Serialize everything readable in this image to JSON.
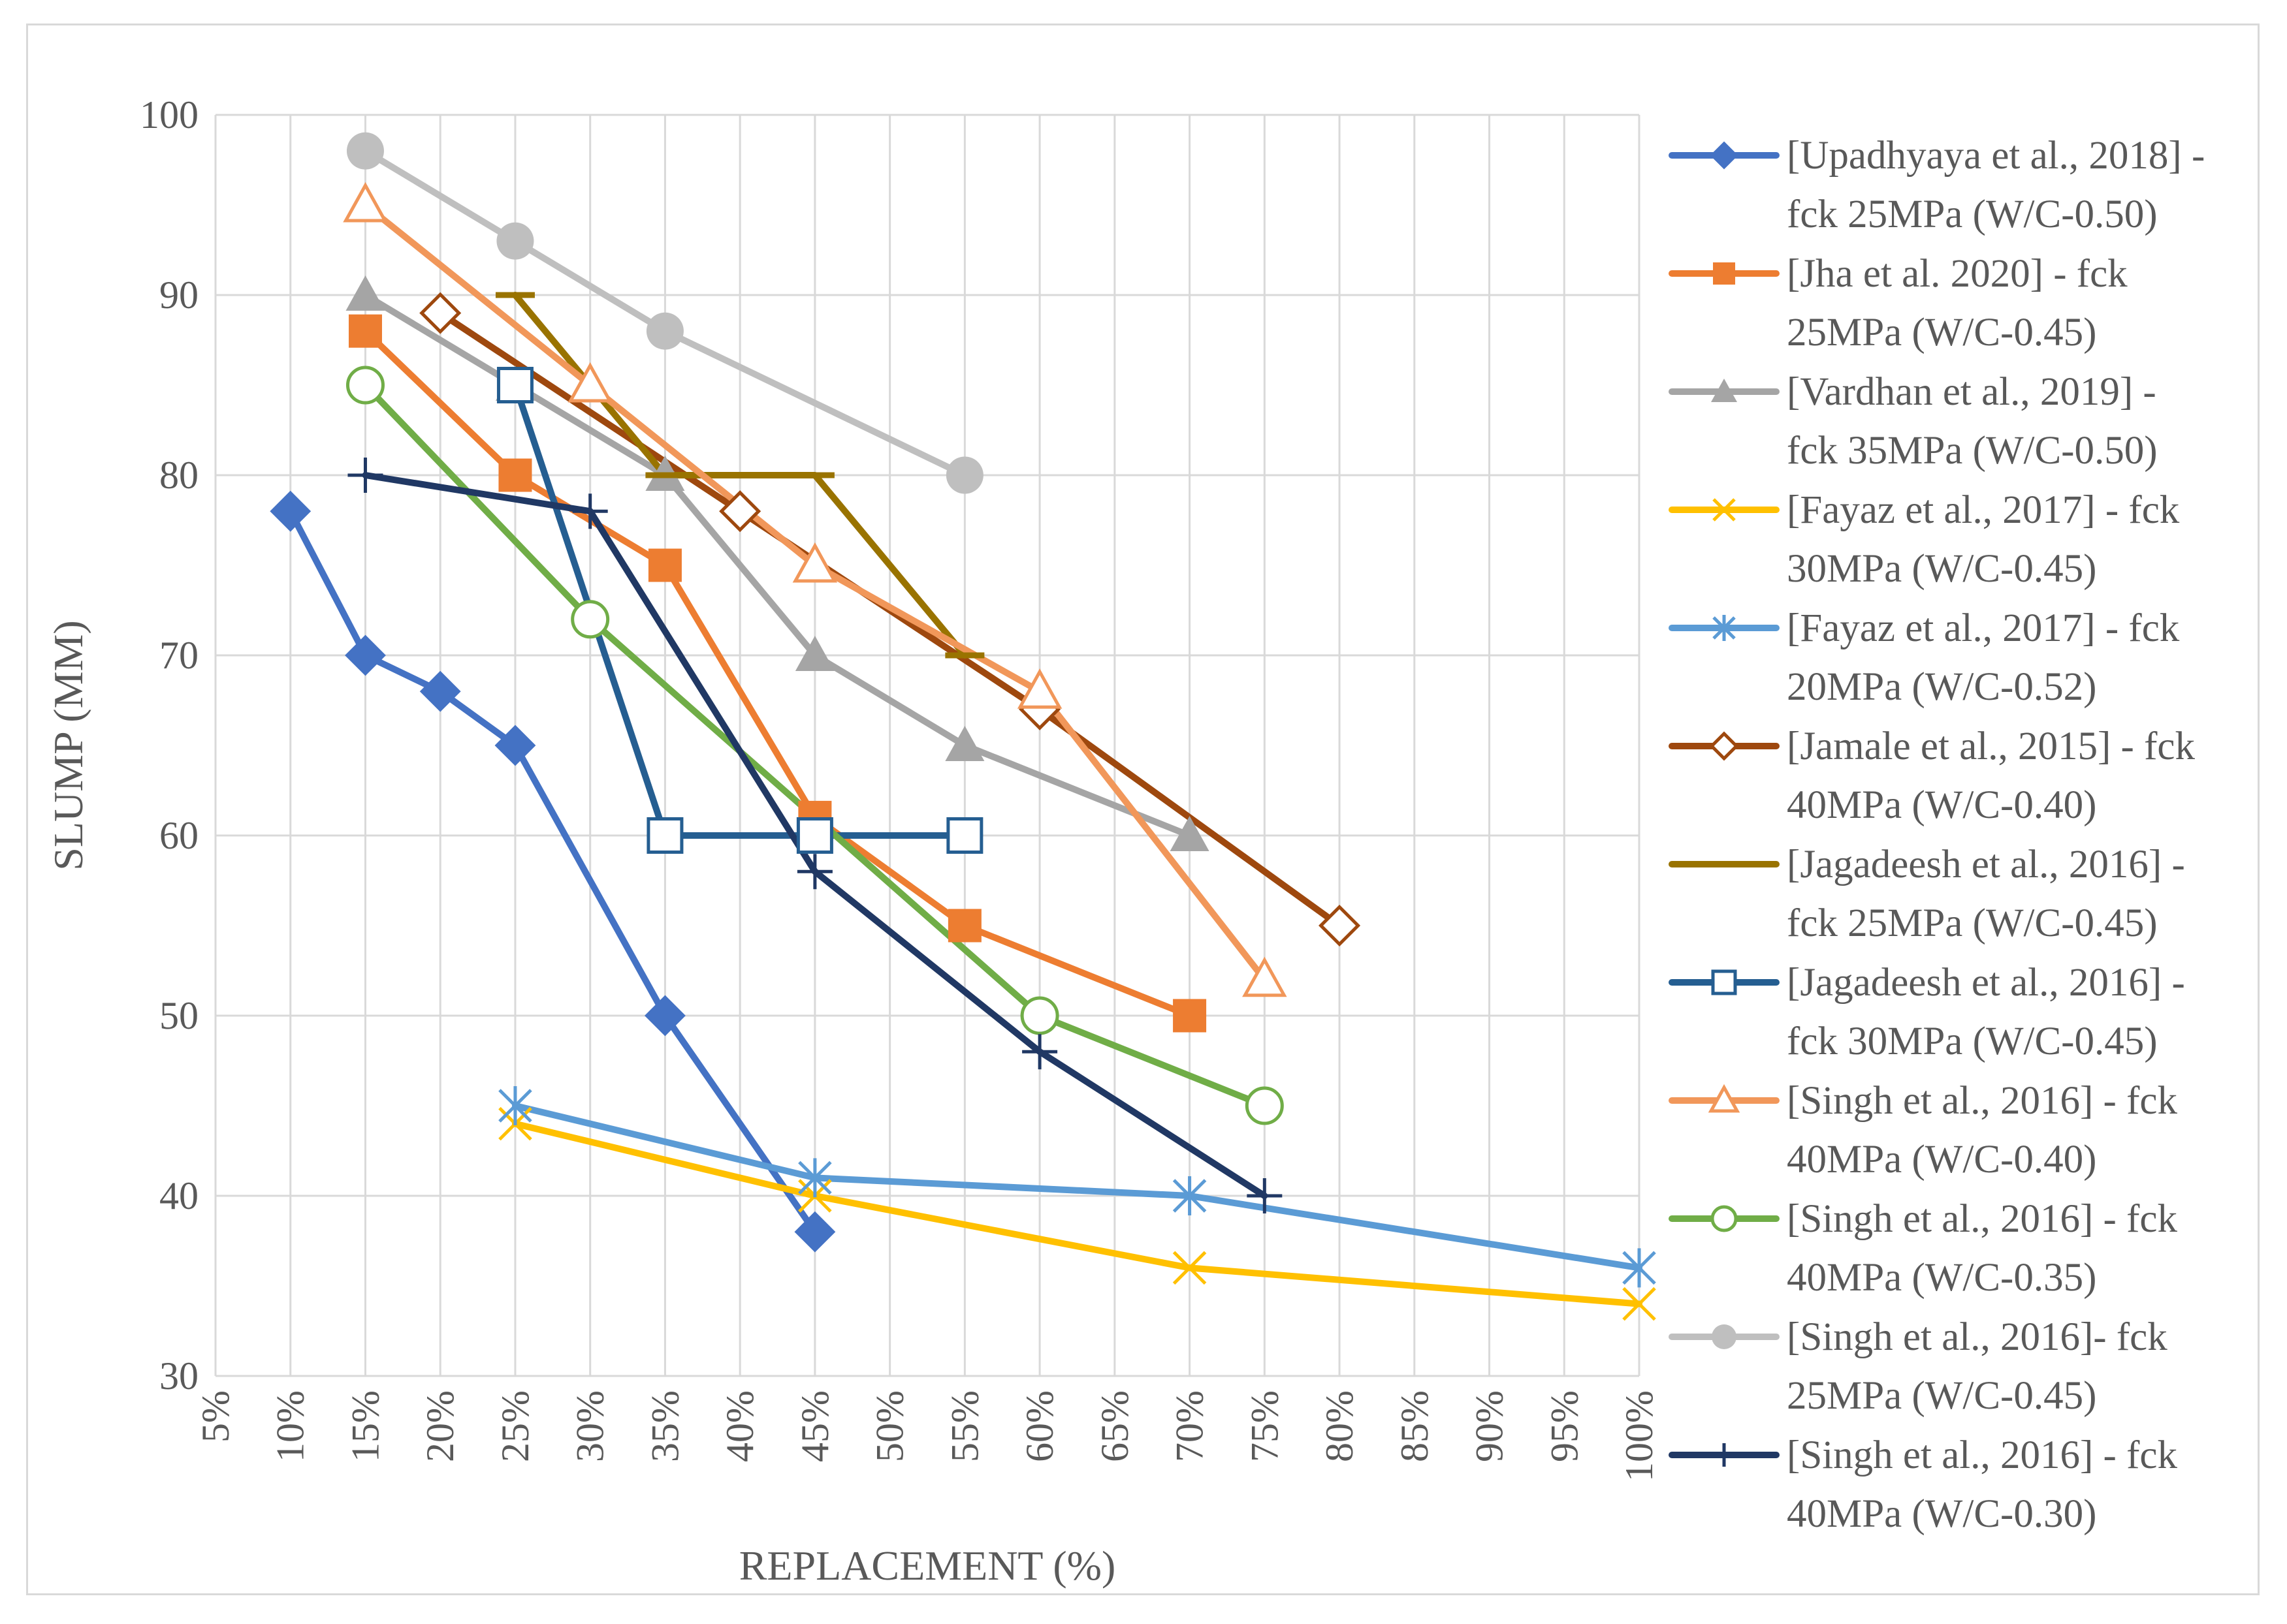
{
  "chart_data": {
    "type": "line",
    "title": "",
    "xlabel": "REPLACEMENT (%)",
    "ylabel": "SLUMP (MM)",
    "ylim": [
      30,
      100
    ],
    "yticks": [
      30,
      40,
      50,
      60,
      70,
      80,
      90,
      100
    ],
    "xlim": [
      5,
      100
    ],
    "xtick_values": [
      5,
      10,
      15,
      20,
      25,
      30,
      35,
      40,
      45,
      50,
      55,
      60,
      65,
      70,
      75,
      80,
      85,
      90,
      95,
      100
    ],
    "xtick_labels": [
      "5%",
      "10%",
      "15%",
      "20%",
      "25%",
      "30%",
      "35%",
      "40%",
      "45%",
      "50%",
      "55%",
      "60%",
      "65%",
      "70%",
      "75%",
      "80%",
      "85%",
      "90%",
      "95%",
      "100%"
    ],
    "grid": true,
    "legend_position": "right",
    "series": [
      {
        "name": "[Upadhyaya et al., 2018] - fck 25MPa (W/C-0.50)",
        "legend_lines": [
          "[Upadhyaya et al., 2018] -",
          "fck 25MPa (W/C-0.50)"
        ],
        "color": "#4472C4",
        "marker": "diamond-filled",
        "x": [
          10,
          15,
          20,
          25,
          35,
          45
        ],
        "y": [
          78,
          70,
          68,
          65,
          50,
          38
        ]
      },
      {
        "name": "[Jha et al. 2020] - fck 25MPa (W/C-0.45)",
        "legend_lines": [
          "[Jha et al. 2020] - fck",
          "25MPa (W/C-0.45)"
        ],
        "color": "#ED7D31",
        "marker": "square-filled",
        "x": [
          15,
          25,
          35,
          45,
          55,
          70
        ],
        "y": [
          88,
          80,
          75,
          61,
          55,
          50
        ]
      },
      {
        "name": "[Vardhan et al., 2019] - fck 35MPa (W/C-0.50)",
        "legend_lines": [
          "[Vardhan et al., 2019] -",
          "fck 35MPa (W/C-0.50)"
        ],
        "color": "#A5A5A5",
        "marker": "triangle-filled",
        "x": [
          15,
          25,
          35,
          45,
          55,
          70
        ],
        "y": [
          90,
          85,
          80,
          70,
          65,
          60
        ]
      },
      {
        "name": "[Fayaz et al., 2017] - fck 30MPa (W/C-0.45)",
        "legend_lines": [
          "[Fayaz et al., 2017] - fck",
          "30MPa (W/C-0.45)"
        ],
        "color": "#FFC000",
        "marker": "x",
        "x": [
          25,
          45,
          70,
          100
        ],
        "y": [
          44,
          40,
          36,
          34
        ]
      },
      {
        "name": "[Fayaz et al., 2017] - fck 20MPa (W/C-0.52)",
        "legend_lines": [
          "[Fayaz et al., 2017] - fck",
          "20MPa (W/C-0.52)"
        ],
        "color": "#5B9BD5",
        "marker": "star",
        "x": [
          25,
          45,
          70,
          100
        ],
        "y": [
          45,
          41,
          40,
          36
        ]
      },
      {
        "name": "[Jamale et al., 2015] - fck 40MPa (W/C-0.40)",
        "legend_lines": [
          "[Jamale et al., 2015] - fck",
          "40MPa (W/C-0.40)"
        ],
        "color": "#9E480E",
        "marker": "diamond-open",
        "x": [
          20,
          40,
          60,
          80
        ],
        "y": [
          89,
          78,
          67,
          55
        ]
      },
      {
        "name": "[Jagadeesh et al., 2016] - fck 25MPa (W/C-0.45)",
        "legend_lines": [
          "[Jagadeesh et al., 2016] -",
          "fck 25MPa (W/C-0.45)"
        ],
        "color": "#997300",
        "marker": "dash",
        "x": [
          25,
          35,
          45,
          55
        ],
        "y": [
          90,
          80,
          80,
          70
        ]
      },
      {
        "name": "[Jagadeesh et al., 2016] - fck 30MPa (W/C-0.45)",
        "legend_lines": [
          "[Jagadeesh et al., 2016] -",
          "fck 30MPa (W/C-0.45)"
        ],
        "color": "#255E91",
        "marker": "square-open",
        "x": [
          25,
          35,
          45,
          55
        ],
        "y": [
          85,
          60,
          60,
          60
        ]
      },
      {
        "name": "[Singh et al., 2016] - fck 40MPa (W/C-0.40)",
        "legend_lines": [
          "[Singh et al., 2016] - fck",
          "40MPa (W/C-0.40)"
        ],
        "color": "#F4B183",
        "stroke": "#F1975A",
        "marker": "triangle-open",
        "x": [
          15,
          30,
          45,
          60,
          75
        ],
        "y": [
          95,
          85,
          75,
          68,
          52
        ]
      },
      {
        "name": "[Singh et al., 2016] - fck 40MPa (W/C-0.35)",
        "legend_lines": [
          "[Singh et al., 2016] - fck",
          "40MPa (W/C-0.35)"
        ],
        "color": "#70AD47",
        "marker": "circle-open",
        "x": [
          15,
          30,
          60,
          75
        ],
        "y": [
          85,
          72,
          50,
          45
        ]
      },
      {
        "name": "[Singh et al., 2016]- fck 25MPa (W/C-0.45)",
        "legend_lines": [
          "[Singh et al., 2016]- fck",
          "25MPa (W/C-0.45)"
        ],
        "color": "#BFBFBF",
        "marker": "circle-filled",
        "x": [
          15,
          25,
          35,
          55
        ],
        "y": [
          98,
          93,
          88,
          80
        ]
      },
      {
        "name": "[Singh et al., 2016] - fck 40MPa (W/C-0.30)",
        "legend_lines": [
          "[Singh et al., 2016] - fck",
          "40MPa (W/C-0.30)"
        ],
        "color": "#203864",
        "marker": "plus",
        "x": [
          15,
          30,
          45,
          60,
          75
        ],
        "y": [
          80,
          78,
          58,
          48,
          40
        ]
      }
    ]
  }
}
